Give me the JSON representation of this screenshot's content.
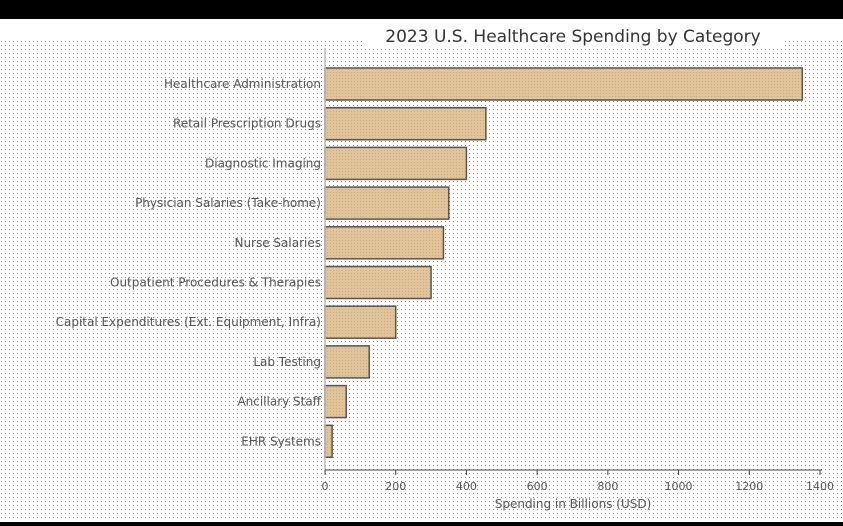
{
  "chart_data": {
    "type": "bar",
    "orientation": "horizontal",
    "title": "2023 U.S. Healthcare Spending by Category",
    "xlabel": "Spending in Billions (USD)",
    "ylabel": "",
    "xlim": [
      0,
      1400
    ],
    "xticks": [
      0,
      200,
      400,
      600,
      800,
      1000,
      1200,
      1400
    ],
    "grid": false,
    "legend": "none",
    "categories": [
      "Healthcare Administration",
      "Retail Prescription Drugs",
      "Diagnostic Imaging",
      "Physician Salaries (Take-home)",
      "Nurse Salaries",
      "Outpatient Procedures & Therapies",
      "Capital Expenditures (Ext. Equipment, Infra)",
      "Lab Testing",
      "Ancillary Staff",
      "EHR Systems"
    ],
    "values": [
      1350,
      455,
      400,
      350,
      335,
      300,
      200,
      125,
      60,
      20
    ],
    "colors": {
      "bar_fill": "#e2c49a",
      "bar_stroke": "#555555",
      "background_dot": "#8a8a8a",
      "axis": "#444444"
    }
  }
}
